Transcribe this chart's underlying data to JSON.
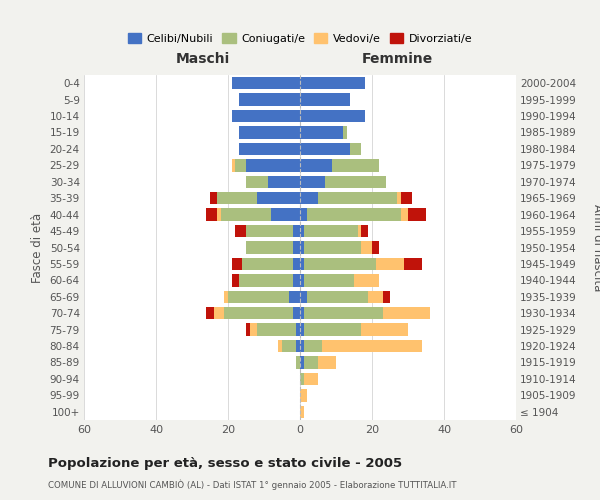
{
  "age_groups": [
    "100+",
    "95-99",
    "90-94",
    "85-89",
    "80-84",
    "75-79",
    "70-74",
    "65-69",
    "60-64",
    "55-59",
    "50-54",
    "45-49",
    "40-44",
    "35-39",
    "30-34",
    "25-29",
    "20-24",
    "15-19",
    "10-14",
    "5-9",
    "0-4"
  ],
  "birth_years": [
    "≤ 1904",
    "1905-1909",
    "1910-1914",
    "1915-1919",
    "1920-1924",
    "1925-1929",
    "1930-1934",
    "1935-1939",
    "1940-1944",
    "1945-1949",
    "1950-1954",
    "1955-1959",
    "1960-1964",
    "1965-1969",
    "1970-1974",
    "1975-1979",
    "1980-1984",
    "1985-1989",
    "1990-1994",
    "1995-1999",
    "2000-2004"
  ],
  "colors": {
    "celibi": "#4472C4",
    "coniugati": "#AABF7E",
    "vedovi": "#FFC26E",
    "divorziati": "#C0130A"
  },
  "maschi": {
    "celibi": [
      0,
      0,
      0,
      0,
      1,
      1,
      2,
      3,
      2,
      2,
      2,
      2,
      8,
      12,
      9,
      15,
      17,
      17,
      19,
      17,
      19
    ],
    "coniugati": [
      0,
      0,
      0,
      1,
      4,
      11,
      19,
      17,
      15,
      14,
      13,
      13,
      14,
      11,
      6,
      3,
      0,
      0,
      0,
      0,
      0
    ],
    "vedovi": [
      0,
      0,
      0,
      0,
      1,
      2,
      3,
      1,
      0,
      0,
      0,
      0,
      1,
      0,
      0,
      1,
      0,
      0,
      0,
      0,
      0
    ],
    "divorziati": [
      0,
      0,
      0,
      0,
      0,
      1,
      2,
      0,
      2,
      3,
      0,
      3,
      3,
      2,
      0,
      0,
      0,
      0,
      0,
      0,
      0
    ]
  },
  "femmine": {
    "celibi": [
      0,
      0,
      0,
      1,
      1,
      1,
      1,
      2,
      1,
      1,
      1,
      1,
      2,
      5,
      7,
      9,
      14,
      12,
      18,
      14,
      18
    ],
    "coniugati": [
      0,
      0,
      1,
      4,
      5,
      16,
      22,
      17,
      14,
      20,
      16,
      15,
      26,
      22,
      17,
      13,
      3,
      1,
      0,
      0,
      0
    ],
    "vedovi": [
      1,
      2,
      4,
      5,
      28,
      13,
      13,
      4,
      7,
      8,
      3,
      1,
      2,
      1,
      0,
      0,
      0,
      0,
      0,
      0,
      0
    ],
    "divorziati": [
      0,
      0,
      0,
      0,
      0,
      0,
      0,
      2,
      0,
      5,
      2,
      2,
      5,
      3,
      0,
      0,
      0,
      0,
      0,
      0,
      0
    ]
  },
  "title": "Popolazione per età, sesso e stato civile - 2005",
  "subtitle": "COMUNE DI ALLUVIONI CAMBIÒ (AL) - Dati ISTAT 1° gennaio 2005 - Elaborazione TUTTITALIA.IT",
  "label_maschi": "Maschi",
  "label_femmine": "Femmine",
  "ylabel_left": "Fasce di età",
  "ylabel_right": "Anni di nascita",
  "xlim": 60,
  "legend_labels": [
    "Celibi/Nubili",
    "Coniugati/e",
    "Vedovi/e",
    "Divorziati/e"
  ],
  "bg_color": "#F2F2EE",
  "plot_bg_color": "#FFFFFF"
}
